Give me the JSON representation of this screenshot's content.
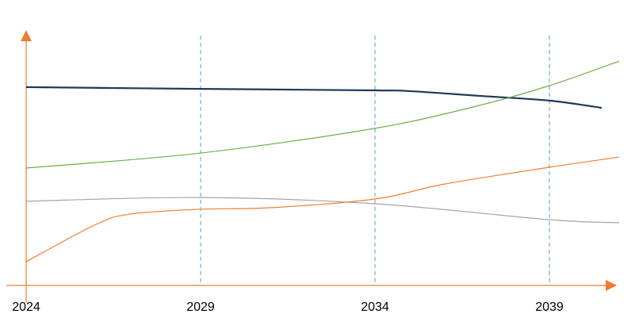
{
  "chart_data": {
    "type": "line",
    "xlim": [
      2024,
      2041
    ],
    "xticks": [
      2024,
      2029,
      2034,
      2039
    ],
    "ylim": [
      0,
      100
    ],
    "axis_color": "#ed7d31",
    "grid_color": "#5b9bd5",
    "grid": true,
    "series": [
      {
        "color": "#1f3a57",
        "x": [
          2024,
          2029,
          2034,
          2035,
          2037,
          2039,
          2040.5
        ],
        "values": [
          79.4,
          78.7,
          78.1,
          77.8,
          75.9,
          74.0,
          71.1
        ]
      },
      {
        "color": "#70ad47",
        "x": [
          2024,
          2029,
          2034,
          2037,
          2039,
          2041
        ],
        "values": [
          47.0,
          53.0,
          62.9,
          72.1,
          80.0,
          89.8
        ]
      },
      {
        "color": "#a5a5a5",
        "x": [
          2024,
          2029,
          2034,
          2039,
          2041
        ],
        "values": [
          33.7,
          35.2,
          32.7,
          26.3,
          25.1
        ]
      },
      {
        "color": "#ed7d31",
        "x": [
          2024,
          2026,
          2027,
          2029,
          2031,
          2034,
          2036,
          2039,
          2041
        ],
        "values": [
          9.5,
          24.4,
          28.6,
          30.5,
          31.1,
          34.6,
          40.6,
          47.3,
          51.4
        ]
      }
    ]
  }
}
